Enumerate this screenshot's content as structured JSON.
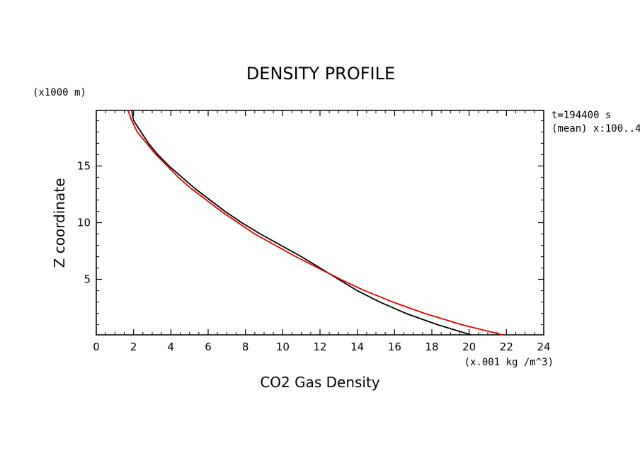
{
  "chart_data": {
    "type": "line",
    "title": "DENSITY PROFILE",
    "xlabel": "CO2 Gas Density",
    "ylabel": "Z coordinate",
    "x_units": "(x.001 kg /m^3)",
    "y_units": "(x1000 m)",
    "annotations": [
      "t=194400 s",
      "(mean) x:100..4"
    ],
    "xlim": [
      0,
      24
    ],
    "ylim": [
      0.1,
      19.9
    ],
    "x_ticks": [
      0,
      2,
      4,
      6,
      8,
      10,
      12,
      14,
      16,
      18,
      20,
      22,
      24
    ],
    "y_ticks": [
      5,
      10,
      15
    ],
    "grid": false,
    "series": [
      {
        "color": "#000000",
        "points": [
          [
            1.9,
            19.9
          ],
          [
            2.0,
            19.0
          ],
          [
            2.4,
            18.0
          ],
          [
            2.8,
            17.0
          ],
          [
            3.3,
            16.0
          ],
          [
            3.9,
            15.0
          ],
          [
            4.6,
            14.0
          ],
          [
            5.3,
            13.0
          ],
          [
            6.1,
            12.0
          ],
          [
            6.9,
            11.0
          ],
          [
            7.8,
            10.0
          ],
          [
            8.8,
            9.0
          ],
          [
            9.9,
            8.0
          ],
          [
            11.0,
            7.0
          ],
          [
            12.0,
            6.0
          ],
          [
            13.0,
            5.0
          ],
          [
            14.0,
            4.0
          ],
          [
            15.2,
            3.0
          ],
          [
            16.6,
            2.0
          ],
          [
            18.3,
            1.0
          ],
          [
            20.1,
            0.1
          ]
        ]
      },
      {
        "color": "#e00000",
        "points": [
          [
            1.7,
            19.9
          ],
          [
            1.9,
            19.0
          ],
          [
            2.2,
            18.0
          ],
          [
            2.7,
            17.0
          ],
          [
            3.2,
            16.0
          ],
          [
            3.8,
            15.0
          ],
          [
            4.4,
            14.0
          ],
          [
            5.1,
            13.0
          ],
          [
            5.9,
            12.0
          ],
          [
            6.7,
            11.0
          ],
          [
            7.6,
            10.0
          ],
          [
            8.5,
            9.0
          ],
          [
            9.6,
            8.0
          ],
          [
            10.7,
            7.0
          ],
          [
            11.9,
            6.0
          ],
          [
            13.1,
            5.0
          ],
          [
            14.4,
            4.0
          ],
          [
            15.9,
            3.0
          ],
          [
            17.6,
            2.0
          ],
          [
            19.6,
            1.0
          ],
          [
            21.8,
            0.1
          ]
        ]
      }
    ]
  }
}
